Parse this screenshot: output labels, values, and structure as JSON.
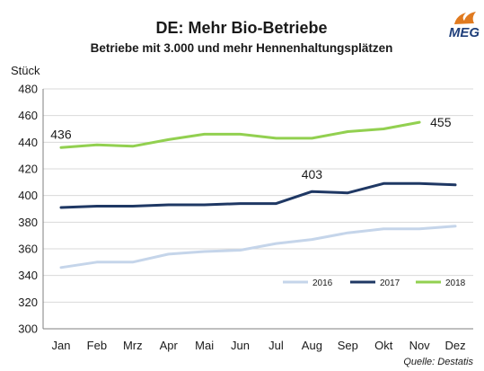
{
  "logo": {
    "text": "MEG",
    "color": "#1f3f7a",
    "flame_color": "#e07a1f"
  },
  "source": "Quelle: Destatis",
  "colors": {
    "2016": "#c5d5ea",
    "2017": "#1f3864",
    "2018": "#92d050"
  },
  "chart_data": {
    "type": "line",
    "title": "DE: Mehr Bio-Betriebe",
    "subtitle": "Betriebe mit 3.000 und mehr Hennenhaltungsplätzen",
    "ylabel": "Stück",
    "xlabel": "",
    "ylim": [
      300,
      480
    ],
    "yticks": [
      300,
      320,
      340,
      360,
      380,
      400,
      420,
      440,
      460,
      480
    ],
    "categories": [
      "Jan",
      "Feb",
      "Mrz",
      "Apr",
      "Mai",
      "Jun",
      "Jul",
      "Aug",
      "Sep",
      "Okt",
      "Nov",
      "Dez"
    ],
    "grid": true,
    "legend_position": "bottom-right",
    "series": [
      {
        "name": "2016",
        "values": [
          346,
          350,
          350,
          356,
          358,
          359,
          364,
          367,
          372,
          375,
          375,
          377
        ]
      },
      {
        "name": "2017",
        "values": [
          391,
          392,
          392,
          393,
          393,
          394,
          394,
          403,
          402,
          409,
          409,
          408
        ]
      },
      {
        "name": "2018",
        "values": [
          436,
          438,
          437,
          442,
          446,
          446,
          443,
          443,
          448,
          450,
          455,
          null
        ]
      }
    ],
    "annotations": [
      {
        "text": "436",
        "series": "2018",
        "category": "Jan"
      },
      {
        "text": "403",
        "series": "2017",
        "category": "Aug"
      },
      {
        "text": "455",
        "series": "2018",
        "category": "Nov"
      }
    ]
  }
}
